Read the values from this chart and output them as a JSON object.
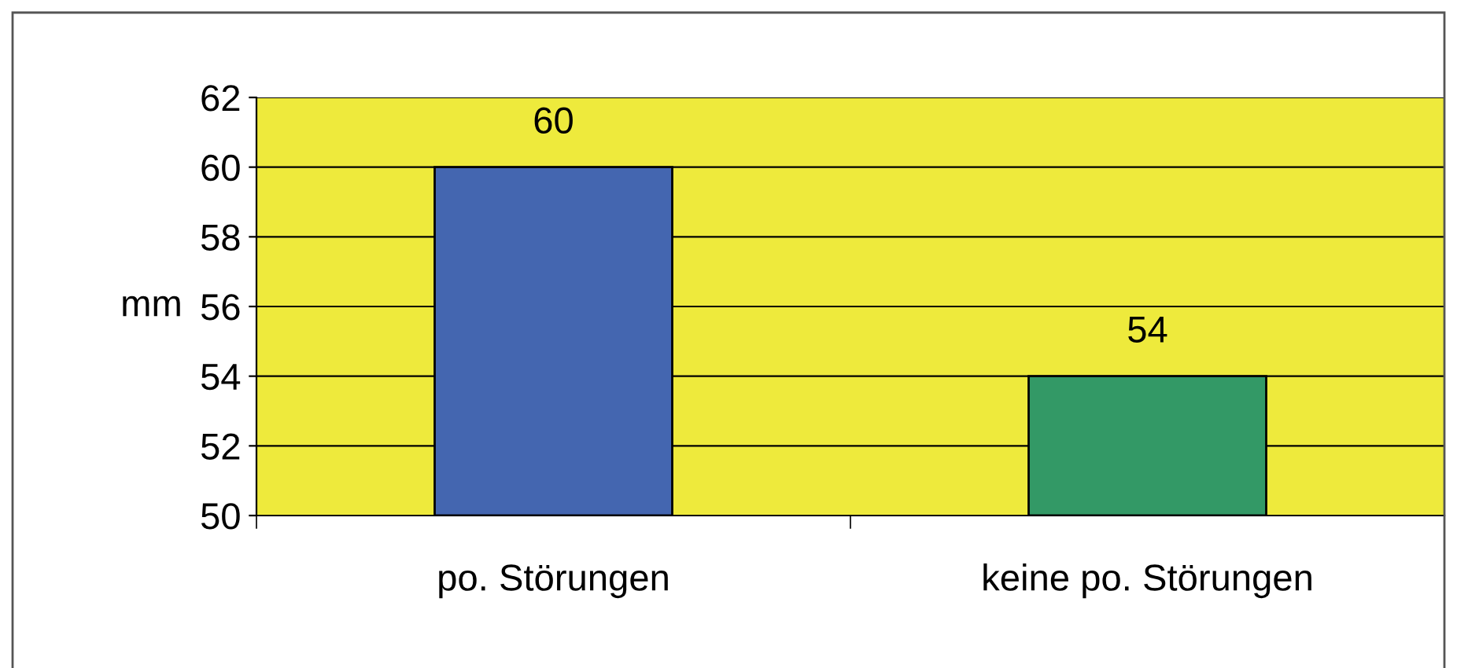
{
  "chart_data": {
    "type": "bar",
    "ylabel": "mm",
    "categories": [
      "po. Störungen",
      "keine po. Störungen"
    ],
    "values": [
      60,
      54
    ],
    "colors": [
      "#4466b0",
      "#339966"
    ],
    "ylim": [
      50,
      62
    ],
    "yticks": [
      50,
      52,
      54,
      56,
      58,
      60,
      62
    ],
    "grid": "y",
    "data_labels": true,
    "legend": false
  }
}
